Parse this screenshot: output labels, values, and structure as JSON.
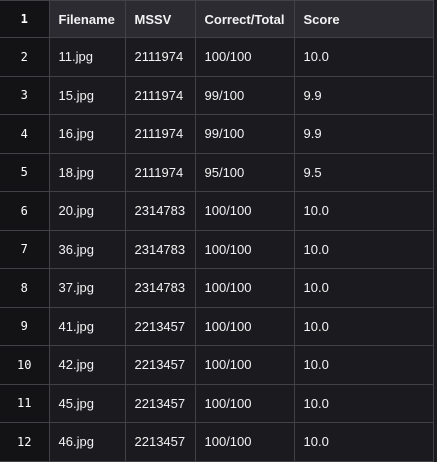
{
  "header": {
    "row_number": "1",
    "columns": [
      "Filename",
      "MSSV",
      "Correct/Total",
      "Score"
    ]
  },
  "rows": [
    {
      "row_number": "2",
      "filename": "11.jpg",
      "mssv": "2111974",
      "correct_total": "100/100",
      "score": "10.0"
    },
    {
      "row_number": "3",
      "filename": "15.jpg",
      "mssv": "2111974",
      "correct_total": "99/100",
      "score": "9.9"
    },
    {
      "row_number": "4",
      "filename": "16.jpg",
      "mssv": "2111974",
      "correct_total": "99/100",
      "score": "9.9"
    },
    {
      "row_number": "5",
      "filename": "18.jpg",
      "mssv": "2111974",
      "correct_total": "95/100",
      "score": "9.5"
    },
    {
      "row_number": "6",
      "filename": "20.jpg",
      "mssv": "2314783",
      "correct_total": "100/100",
      "score": "10.0"
    },
    {
      "row_number": "7",
      "filename": "36.jpg",
      "mssv": "2314783",
      "correct_total": "100/100",
      "score": "10.0"
    },
    {
      "row_number": "8",
      "filename": "37.jpg",
      "mssv": "2314783",
      "correct_total": "100/100",
      "score": "10.0"
    },
    {
      "row_number": "9",
      "filename": "41.jpg",
      "mssv": "2213457",
      "correct_total": "100/100",
      "score": "10.0"
    },
    {
      "row_number": "10",
      "filename": "42.jpg",
      "mssv": "2213457",
      "correct_total": "100/100",
      "score": "10.0"
    },
    {
      "row_number": "11",
      "filename": "45.jpg",
      "mssv": "2213457",
      "correct_total": "100/100",
      "score": "10.0"
    },
    {
      "row_number": "12",
      "filename": "46.jpg",
      "mssv": "2213457",
      "correct_total": "100/100",
      "score": "10.0"
    }
  ]
}
